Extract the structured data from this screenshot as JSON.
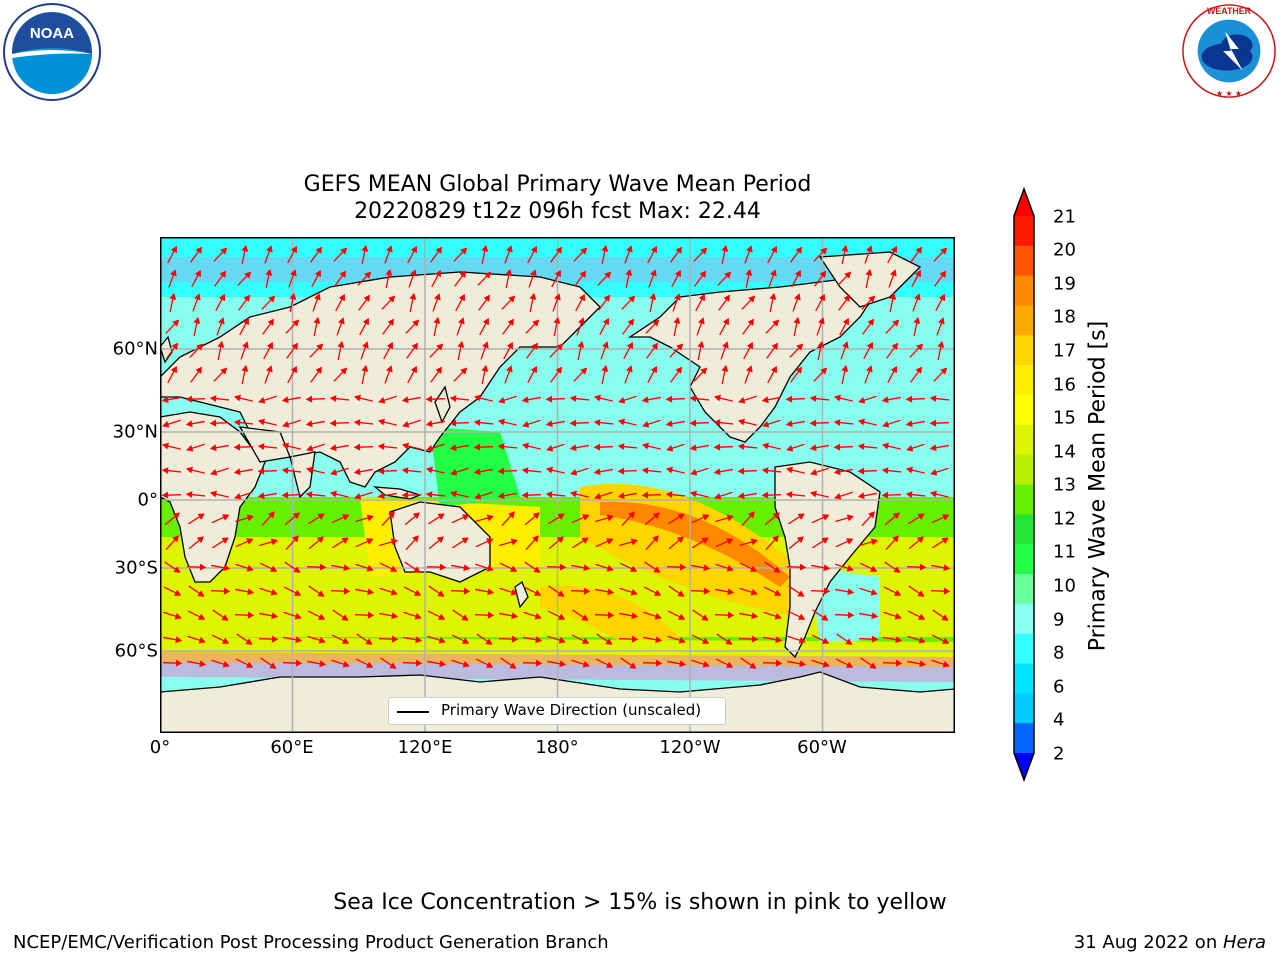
{
  "title_line1": "GEFS MEAN Global Primary Wave Mean Period",
  "title_line2": "20220829 t12z 096h fcst   Max: 22.44",
  "lon_ticks": [
    "0°",
    "60°E",
    "120°E",
    "180°",
    "120°W",
    "60°W"
  ],
  "lat_ticks": [
    "60°N",
    "30°N",
    "0°",
    "30°S",
    "60°S"
  ],
  "colorbar": {
    "label": "Primary Wave Mean Period [s]",
    "ticks": [
      "21",
      "20",
      "19",
      "18",
      "17",
      "16",
      "15",
      "14",
      "13",
      "12",
      "11",
      "10",
      "9",
      "8",
      "6",
      "4",
      "2"
    ],
    "colors": [
      "#ff1a00",
      "#ff5500",
      "#ff8800",
      "#ffaa00",
      "#ffd500",
      "#ffee00",
      "#ffff00",
      "#ddf500",
      "#b8f000",
      "#66f000",
      "#22e633",
      "#22ff44",
      "#66ff99",
      "#88ffee",
      "#33ffff",
      "#00e5ff",
      "#00ccff",
      "#0066ff"
    ],
    "over_color": "#ff0000",
    "under_color": "#0000ff"
  },
  "legend_text": "Primary Wave Direction (unscaled)",
  "footnote": "Sea Ice Concentration > 15% is shown in pink to yellow",
  "credit": "NCEP/EMC/Verification Post Processing Product Generation Branch",
  "date_prefix": "31 Aug 2022 on ",
  "date_machine": "Hera",
  "logos": {
    "left": "NOAA",
    "right": "NATIONAL WEATHER SERVICE"
  },
  "colors": {
    "land": "#efecd9",
    "coast": "#000000",
    "arrow": "#ff0000",
    "grid": "#b0b0b0"
  }
}
